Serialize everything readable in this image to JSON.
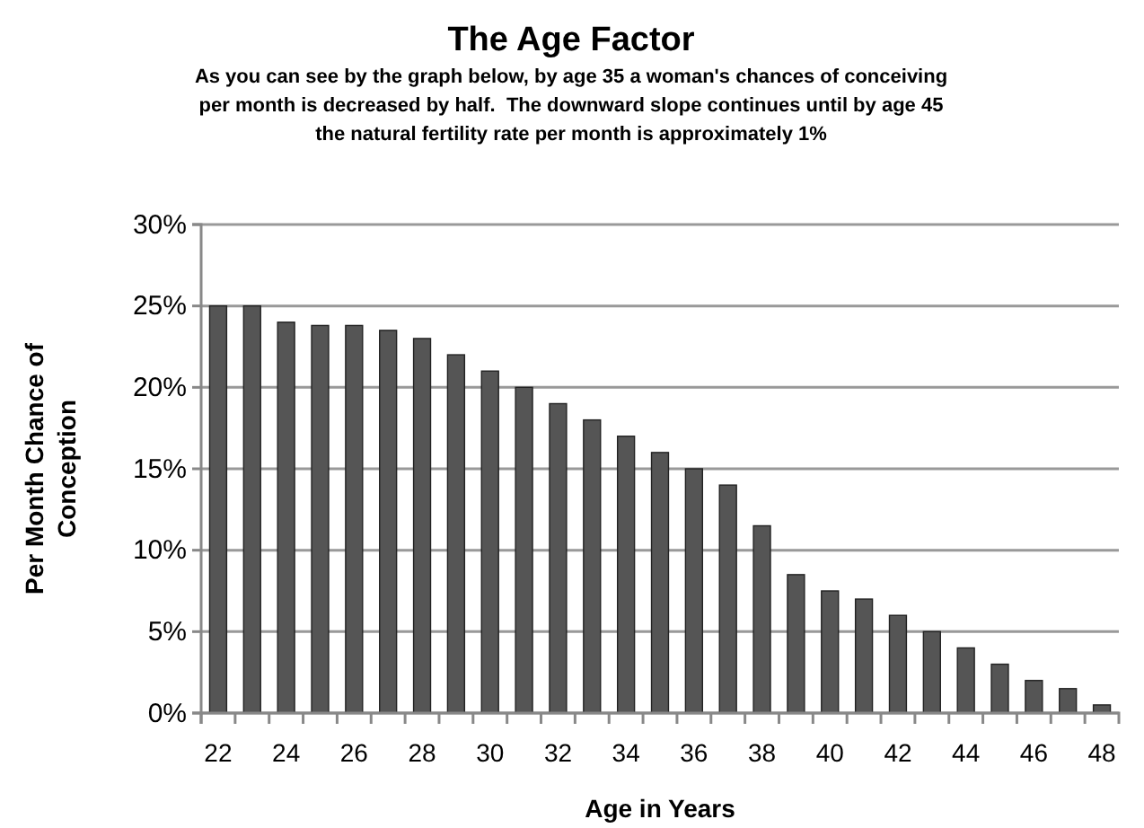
{
  "chart_data": {
    "type": "bar",
    "title": "The Age Factor",
    "subtitle": "As you can see by the graph below, by age 35 a woman's chances of conceiving\nper month is decreased by half.  The downward slope continues until by age 45\nthe natural fertility rate per month is approximately 1%",
    "xlabel": "Age in Years",
    "ylabel": "Per Month Chance of\nConception",
    "categories": [
      "22",
      null,
      "24",
      null,
      "26",
      null,
      "28",
      null,
      "30",
      null,
      "32",
      null,
      "34",
      null,
      "36",
      null,
      "38",
      null,
      "40",
      null,
      "42",
      null,
      "44",
      null,
      "46",
      null,
      "48"
    ],
    "values": [
      25,
      25,
      24,
      23.8,
      23.8,
      23.5,
      23,
      22,
      21,
      20,
      19,
      18,
      17,
      16,
      15,
      14,
      11.5,
      8.5,
      7.5,
      7,
      6,
      5,
      4,
      3,
      2,
      1.5,
      0.5
    ],
    "color": "#555555",
    "ylim": [
      0,
      30
    ],
    "yticks": [
      {
        "value": 0,
        "label": "0%"
      },
      {
        "value": 5,
        "label": "5%"
      },
      {
        "value": 10,
        "label": "10%"
      },
      {
        "value": 15,
        "label": "15%"
      },
      {
        "value": 20,
        "label": "20%"
      },
      {
        "value": 25,
        "label": "25%"
      },
      {
        "value": 30,
        "label": "30%"
      }
    ],
    "grid": "y"
  }
}
